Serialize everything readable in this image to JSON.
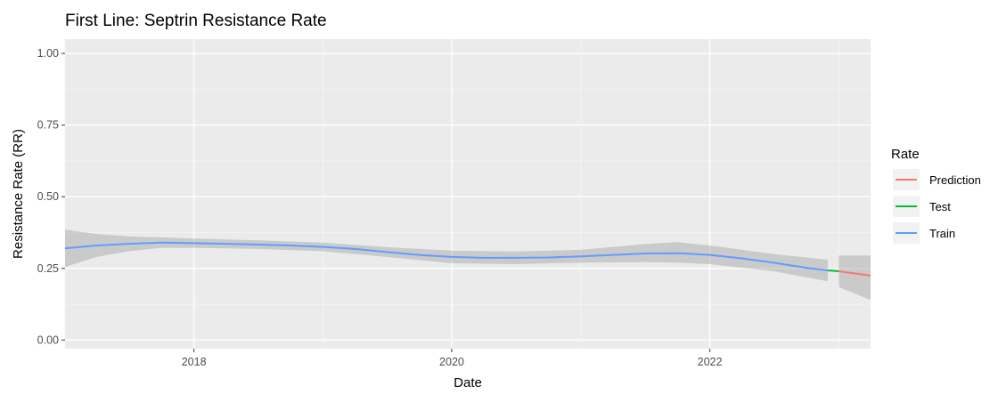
{
  "chart_data": {
    "type": "line",
    "title": "First Line: Septrin Resistance Rate",
    "xlabel": "Date",
    "ylabel": "Resistance Rate (RR)",
    "xlim": [
      "2017-01-01",
      "2023-04-01"
    ],
    "ylim": [
      -0.03,
      1.05
    ],
    "x_ticks": [
      "2018",
      "2020",
      "2022"
    ],
    "y_ticks": [
      "0.00",
      "0.25",
      "0.50",
      "0.75",
      "1.00"
    ],
    "grid": true,
    "legend": {
      "title": "Rate",
      "placement": "right"
    },
    "series": [
      {
        "name": "Train",
        "color": "#619CFF",
        "points": [
          {
            "x": "2017-01-01",
            "y": 0.32
          },
          {
            "x": "2017-04-01",
            "y": 0.33
          },
          {
            "x": "2017-07-01",
            "y": 0.336
          },
          {
            "x": "2017-10-01",
            "y": 0.34
          },
          {
            "x": "2018-01-01",
            "y": 0.338
          },
          {
            "x": "2018-04-01",
            "y": 0.336
          },
          {
            "x": "2018-07-01",
            "y": 0.333
          },
          {
            "x": "2018-10-01",
            "y": 0.33
          },
          {
            "x": "2019-01-01",
            "y": 0.325
          },
          {
            "x": "2019-04-01",
            "y": 0.318
          },
          {
            "x": "2019-07-01",
            "y": 0.307
          },
          {
            "x": "2019-10-01",
            "y": 0.297
          },
          {
            "x": "2020-01-01",
            "y": 0.29
          },
          {
            "x": "2020-04-01",
            "y": 0.287
          },
          {
            "x": "2020-07-01",
            "y": 0.287
          },
          {
            "x": "2020-10-01",
            "y": 0.288
          },
          {
            "x": "2021-01-01",
            "y": 0.292
          },
          {
            "x": "2021-04-01",
            "y": 0.297
          },
          {
            "x": "2021-07-01",
            "y": 0.302
          },
          {
            "x": "2021-10-01",
            "y": 0.303
          },
          {
            "x": "2022-01-01",
            "y": 0.297
          },
          {
            "x": "2022-04-01",
            "y": 0.285
          },
          {
            "x": "2022-07-01",
            "y": 0.27
          },
          {
            "x": "2022-10-01",
            "y": 0.252
          },
          {
            "x": "2022-12-01",
            "y": 0.243
          }
        ],
        "band": [
          {
            "x": "2017-01-01",
            "lo": 0.255,
            "hi": 0.385
          },
          {
            "x": "2017-04-01",
            "lo": 0.29,
            "hi": 0.37
          },
          {
            "x": "2017-07-01",
            "lo": 0.31,
            "hi": 0.362
          },
          {
            "x": "2017-10-01",
            "lo": 0.322,
            "hi": 0.358
          },
          {
            "x": "2018-01-01",
            "lo": 0.322,
            "hi": 0.354
          },
          {
            "x": "2018-07-01",
            "lo": 0.318,
            "hi": 0.348
          },
          {
            "x": "2019-01-01",
            "lo": 0.31,
            "hi": 0.34
          },
          {
            "x": "2019-07-01",
            "lo": 0.29,
            "hi": 0.324
          },
          {
            "x": "2020-01-01",
            "lo": 0.268,
            "hi": 0.312
          },
          {
            "x": "2020-07-01",
            "lo": 0.265,
            "hi": 0.309
          },
          {
            "x": "2021-01-01",
            "lo": 0.27,
            "hi": 0.315
          },
          {
            "x": "2021-07-01",
            "lo": 0.272,
            "hi": 0.335
          },
          {
            "x": "2021-10-01",
            "lo": 0.27,
            "hi": 0.342
          },
          {
            "x": "2022-01-01",
            "lo": 0.265,
            "hi": 0.33
          },
          {
            "x": "2022-07-01",
            "lo": 0.24,
            "hi": 0.3
          },
          {
            "x": "2022-12-01",
            "lo": 0.205,
            "hi": 0.28
          }
        ]
      },
      {
        "name": "Test",
        "color": "#00BA38",
        "points": [
          {
            "x": "2022-12-01",
            "y": 0.243
          },
          {
            "x": "2023-01-01",
            "y": 0.24
          }
        ]
      },
      {
        "name": "Prediction",
        "color": "#F8766D",
        "points": [
          {
            "x": "2023-01-01",
            "y": 0.24
          },
          {
            "x": "2023-04-01",
            "y": 0.225
          }
        ],
        "band": [
          {
            "x": "2023-01-01",
            "lo": 0.185,
            "hi": 0.295
          },
          {
            "x": "2023-04-01",
            "lo": 0.14,
            "hi": 0.295
          }
        ]
      }
    ],
    "legend_order": [
      "Prediction",
      "Test",
      "Train"
    ]
  }
}
